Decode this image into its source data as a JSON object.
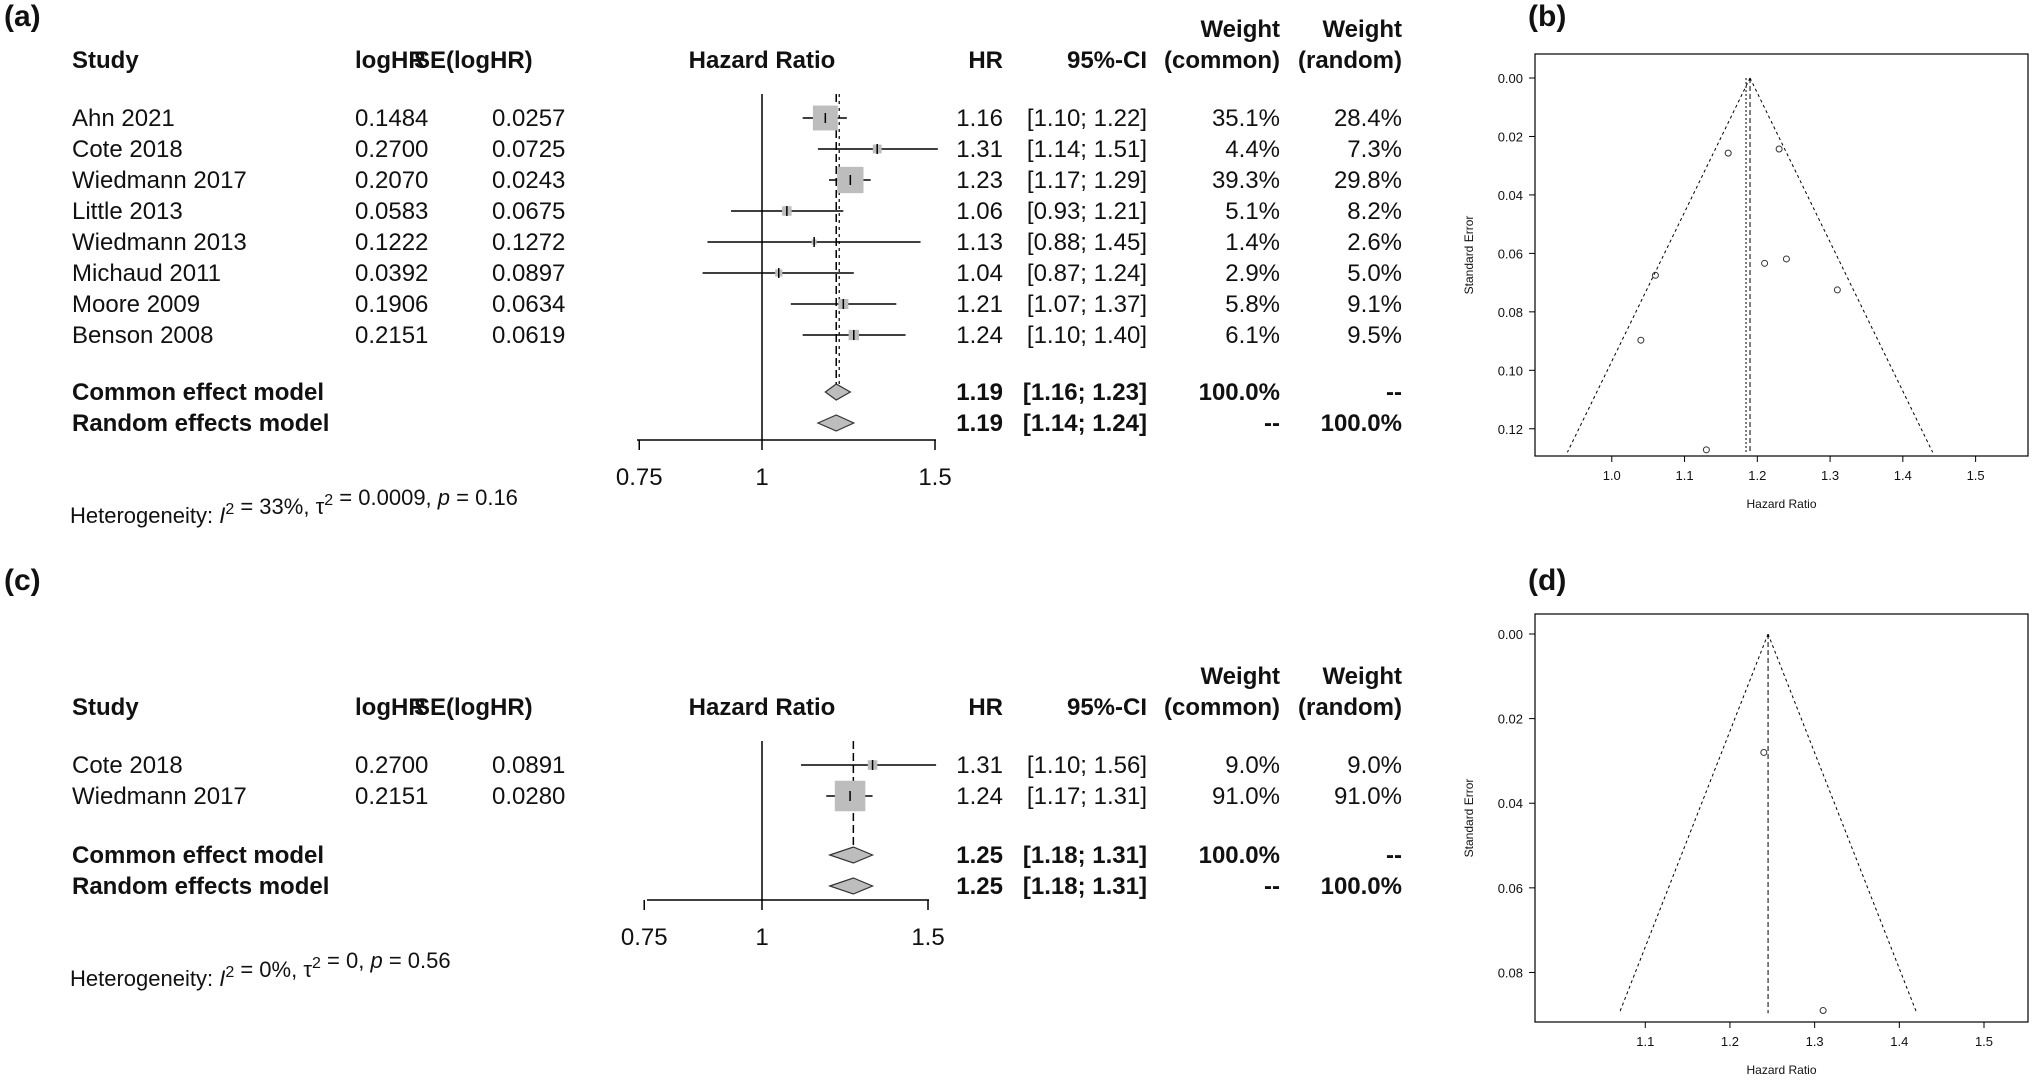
{
  "panel_labels": {
    "a": "(a)",
    "b": "(b)",
    "c": "(c)",
    "d": "(d)"
  },
  "headers": {
    "study": "Study",
    "loghr": "logHR",
    "se": "SE(logHR)",
    "hazard_ratio": "Hazard Ratio",
    "hr": "HR",
    "ci": "95%-CI",
    "weight_common": [
      "Weight",
      "(common)"
    ],
    "weight_random": [
      "Weight",
      "(random)"
    ]
  },
  "chart_data": [
    {
      "type": "forest",
      "panel": "(a)",
      "xlabel": "Hazard Ratio",
      "xlim": [
        0.75,
        1.5
      ],
      "x_ticks": [
        "0.75",
        "1",
        "1.5"
      ],
      "studies": [
        {
          "study": "Ahn 2021",
          "loghr": "0.1484",
          "se": "0.0257",
          "hr": 1.16,
          "lo": 1.1,
          "hi": 1.22,
          "hr_text": "1.16",
          "ci_text": "[1.10; 1.22]",
          "w_common": "35.1%",
          "w_random": "28.4%",
          "weight": 35.1
        },
        {
          "study": "Cote 2018",
          "loghr": "0.2700",
          "se": "0.0725",
          "hr": 1.31,
          "lo": 1.14,
          "hi": 1.51,
          "hr_text": "1.31",
          "ci_text": "[1.14; 1.51]",
          "w_common": "4.4%",
          "w_random": "7.3%",
          "weight": 4.4
        },
        {
          "study": "Wiedmann 2017",
          "loghr": "0.2070",
          "se": "0.0243",
          "hr": 1.23,
          "lo": 1.17,
          "hi": 1.29,
          "hr_text": "1.23",
          "ci_text": "[1.17; 1.29]",
          "w_common": "39.3%",
          "w_random": "29.8%",
          "weight": 39.3
        },
        {
          "study": "Little 2013",
          "loghr": "0.0583",
          "se": "0.0675",
          "hr": 1.06,
          "lo": 0.93,
          "hi": 1.21,
          "hr_text": "1.06",
          "ci_text": "[0.93; 1.21]",
          "w_common": "5.1%",
          "w_random": "8.2%",
          "weight": 5.1
        },
        {
          "study": "Wiedmann 2013",
          "loghr": "0.1222",
          "se": "0.1272",
          "hr": 1.13,
          "lo": 0.88,
          "hi": 1.45,
          "hr_text": "1.13",
          "ci_text": "[0.88; 1.45]",
          "w_common": "1.4%",
          "w_random": "2.6%",
          "weight": 1.4
        },
        {
          "study": "Michaud 2011",
          "loghr": "0.0392",
          "se": "0.0897",
          "hr": 1.04,
          "lo": 0.87,
          "hi": 1.24,
          "hr_text": "1.04",
          "ci_text": "[0.87; 1.24]",
          "w_common": "2.9%",
          "w_random": "5.0%",
          "weight": 2.9
        },
        {
          "study": "Moore 2009",
          "loghr": "0.1906",
          "se": "0.0634",
          "hr": 1.21,
          "lo": 1.07,
          "hi": 1.37,
          "hr_text": "1.21",
          "ci_text": "[1.07; 1.37]",
          "w_common": "5.8%",
          "w_random": "9.1%",
          "weight": 5.8
        },
        {
          "study": "Benson 2008",
          "loghr": "0.2151",
          "se": "0.0619",
          "hr": 1.24,
          "lo": 1.1,
          "hi": 1.4,
          "hr_text": "1.24",
          "ci_text": "[1.10; 1.40]",
          "w_common": "6.1%",
          "w_random": "9.5%",
          "weight": 6.1
        }
      ],
      "models": [
        {
          "label": "Common effect model",
          "hr": 1.19,
          "lo": 1.16,
          "hi": 1.23,
          "hr_text": "1.19",
          "ci_text": "[1.16; 1.23]",
          "w_common": "100.0%",
          "w_random": "--"
        },
        {
          "label": "Random effects model",
          "hr": 1.19,
          "lo": 1.14,
          "hi": 1.24,
          "hr_text": "1.19",
          "ci_text": "[1.14; 1.24]",
          "w_common": "--",
          "w_random": "100.0%"
        }
      ],
      "heterogeneity": {
        "prefix": "Heterogeneity: ",
        "i2": "I",
        "i2_exp": "2",
        "i2_val": " = 33%, ",
        "tau": "τ",
        "tau_exp": "2",
        "tau_val": " = 0.0009, ",
        "p": "p",
        "p_val": " = 0.16"
      }
    },
    {
      "type": "scatter",
      "subtype": "funnel",
      "panel": "(b)",
      "xlabel": "Hazard Ratio",
      "ylabel": "Standard Error",
      "xlim": [
        0.9,
        1.55
      ],
      "ylim": [
        0.0,
        0.13
      ],
      "y_reversed": true,
      "x_ticks": [
        "1.0",
        "1.1",
        "1.2",
        "1.3",
        "1.4",
        "1.5"
      ],
      "y_ticks": [
        "0.00",
        "0.02",
        "0.04",
        "0.06",
        "0.08",
        "0.10",
        "0.12"
      ],
      "center_common": 1.19,
      "center_random": 1.19,
      "points": [
        {
          "x": 1.16,
          "y": 0.0257
        },
        {
          "x": 1.31,
          "y": 0.0725
        },
        {
          "x": 1.23,
          "y": 0.0243
        },
        {
          "x": 1.06,
          "y": 0.0675
        },
        {
          "x": 1.13,
          "y": 0.1272
        },
        {
          "x": 1.04,
          "y": 0.0897
        },
        {
          "x": 1.21,
          "y": 0.0634
        },
        {
          "x": 1.24,
          "y": 0.0619
        }
      ]
    },
    {
      "type": "forest",
      "panel": "(c)",
      "xlabel": "Hazard Ratio",
      "xlim": [
        0.75,
        1.5
      ],
      "x_ticks": [
        "0.75",
        "1",
        "1.5"
      ],
      "studies": [
        {
          "study": "Cote 2018",
          "loghr": "0.2700",
          "se": "0.0891",
          "hr": 1.31,
          "lo": 1.1,
          "hi": 1.56,
          "hr_text": "1.31",
          "ci_text": "[1.10; 1.56]",
          "w_common": "9.0%",
          "w_random": "9.0%",
          "weight": 9.0
        },
        {
          "study": "Wiedmann 2017",
          "loghr": "0.2151",
          "se": "0.0280",
          "hr": 1.24,
          "lo": 1.17,
          "hi": 1.31,
          "hr_text": "1.24",
          "ci_text": "[1.17; 1.31]",
          "w_common": "91.0%",
          "w_random": "91.0%",
          "weight": 91.0
        }
      ],
      "models": [
        {
          "label": "Common effect model",
          "hr": 1.25,
          "lo": 1.18,
          "hi": 1.31,
          "hr_text": "1.25",
          "ci_text": "[1.18; 1.31]",
          "w_common": "100.0%",
          "w_random": "--"
        },
        {
          "label": "Random effects model",
          "hr": 1.25,
          "lo": 1.18,
          "hi": 1.31,
          "hr_text": "1.25",
          "ci_text": "[1.18; 1.31]",
          "w_common": "--",
          "w_random": "100.0%"
        }
      ],
      "heterogeneity": {
        "prefix": "Heterogeneity: ",
        "i2": "I",
        "i2_exp": "2",
        "i2_val": " = 0%, ",
        "tau": "τ",
        "tau_exp": "2",
        "tau_val": " = 0, ",
        "p": "p",
        "p_val": " = 0.56"
      }
    },
    {
      "type": "scatter",
      "subtype": "funnel",
      "panel": "(d)",
      "xlabel": "Hazard Ratio",
      "ylabel": "Standard Error",
      "xlim": [
        1.03,
        1.5
      ],
      "ylim": [
        0.0,
        0.091
      ],
      "y_reversed": true,
      "x_ticks": [
        "1.1",
        "1.2",
        "1.3",
        "1.4",
        "1.5"
      ],
      "y_ticks": [
        "0.00",
        "0.02",
        "0.04",
        "0.06",
        "0.08"
      ],
      "center_common": 1.245,
      "points": [
        {
          "x": 1.24,
          "y": 0.028
        },
        {
          "x": 1.31,
          "y": 0.089
        }
      ]
    }
  ]
}
